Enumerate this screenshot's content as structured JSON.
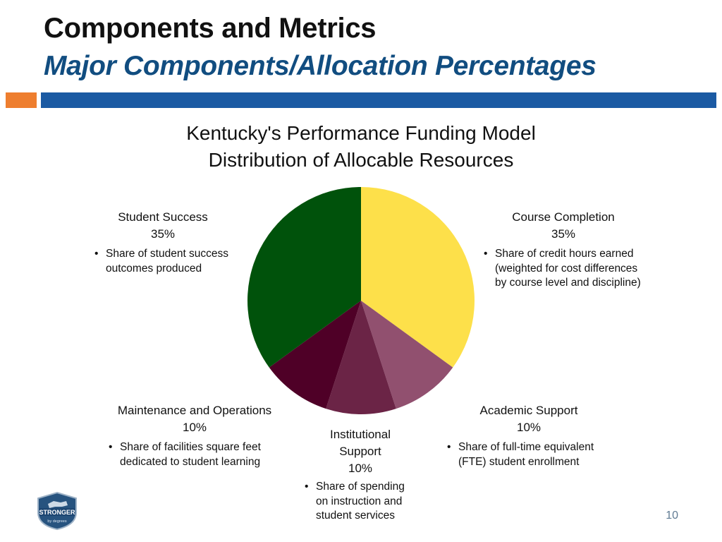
{
  "header": {
    "title": "Components and Metrics",
    "subtitle": "Major Components/Allocation Percentages"
  },
  "colors": {
    "subtitle": "#114d80",
    "accent_orange": "#ee7e2f",
    "accent_blue": "#1b5aa3",
    "page_number": "#607b93"
  },
  "chart_data": {
    "type": "pie",
    "title_lines": [
      "Kentucky's Performance Funding Model",
      "Distribution of Allocable Resources"
    ],
    "start": "12 o'clock",
    "direction": "clockwise",
    "slices": [
      {
        "name": "Course Completion",
        "value": 35,
        "value_label": "35%",
        "color": "#fde04a",
        "desc_lines": [
          "Share of credit hours earned",
          "(weighted for cost differences",
          "by course level and discipline)"
        ]
      },
      {
        "name": "Academic Support",
        "value": 10,
        "value_label": "10%",
        "color": "#91506f",
        "desc_lines": [
          "Share of full-time equivalent",
          "(FTE) student enrollment"
        ]
      },
      {
        "name_lines": [
          "Institutional",
          "Support"
        ],
        "value": 10,
        "value_label": "10%",
        "color": "#6b2446",
        "desc_lines": [
          "Share of spending",
          "on instruction and",
          "student services"
        ]
      },
      {
        "name": "Maintenance and Operations",
        "value": 10,
        "value_label": "10%",
        "color": "#4f0027",
        "desc_lines": [
          "Share of facilities square feet",
          "dedicated to student learning"
        ]
      },
      {
        "name": "Student Success",
        "value": 35,
        "value_label": "35%",
        "color": "#00520b",
        "desc_lines": [
          "Share of student success",
          "outcomes produced"
        ]
      }
    ]
  },
  "footer": {
    "page_number": "10",
    "logo_line1": "STRONGER",
    "logo_line2": "by degrees"
  }
}
